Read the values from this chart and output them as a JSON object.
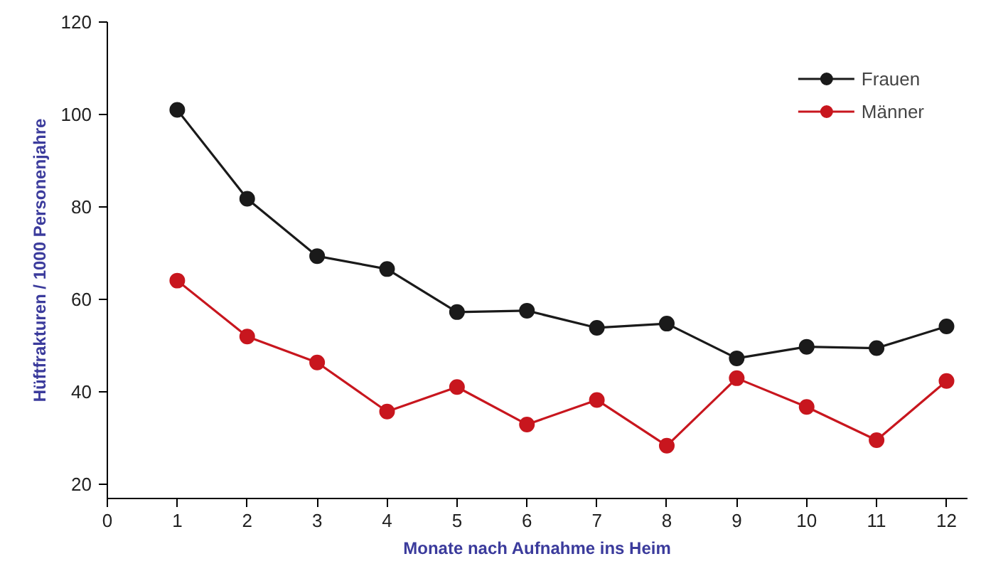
{
  "chart_data": {
    "type": "line",
    "xlabel": "Monate nach Aufnahme ins Heim",
    "ylabel": "Hüftfrakturen / 1000 Personenjahre",
    "x": [
      1,
      2,
      3,
      4,
      5,
      6,
      7,
      8,
      9,
      10,
      11,
      12
    ],
    "series": [
      {
        "name": "Frauen",
        "color": "#1a1a1a",
        "values": [
          101,
          81.8,
          69.4,
          66.6,
          57.3,
          57.6,
          53.9,
          54.8,
          47.3,
          49.8,
          49.5,
          54.2
        ]
      },
      {
        "name": "Männer",
        "color": "#c8161e",
        "values": [
          64.1,
          52,
          46.4,
          35.8,
          41.1,
          33,
          38.3,
          28.4,
          43,
          36.8,
          29.6,
          42.4
        ]
      }
    ],
    "xlim": [
      0,
      12.3
    ],
    "xticks": [
      0,
      1,
      2,
      3,
      4,
      5,
      6,
      7,
      8,
      9,
      10,
      11,
      12
    ],
    "ylim": [
      17,
      120
    ],
    "yticks": [
      20,
      40,
      60,
      80,
      100,
      120
    ],
    "grid": false,
    "legend": "top right",
    "marker": "circle",
    "line_style": "solid"
  }
}
